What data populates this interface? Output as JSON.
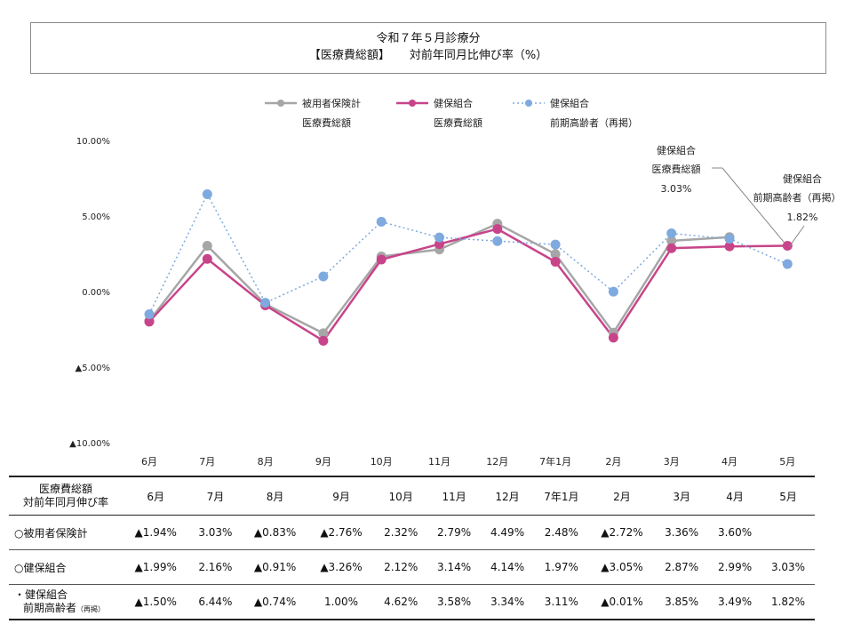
{
  "title": {
    "line1": "令和７年５月診療分",
    "line2a": "【医療費総額】",
    "line2b": "対前年同月比伸び率（%）"
  },
  "legend": [
    {
      "line1": "被用者保険計",
      "line2": "医療費総額"
    },
    {
      "line1": "健保組合",
      "line2": "医療費総額"
    },
    {
      "line1": "健保組合",
      "line2": "前期高齢者（再掲）"
    }
  ],
  "annotations": [
    {
      "lines": [
        "健保組合",
        "医療費総額",
        "3.03%"
      ]
    },
    {
      "lines": [
        "健保組合",
        "前期高齢者（再掲）",
        "1.82%"
      ]
    }
  ],
  "colors": {
    "series1": "#a6a6a6",
    "series2": "#c8448a",
    "series3": "#7eaadf"
  },
  "chart_data": {
    "type": "line",
    "categories": [
      "6月",
      "7月",
      "8月",
      "9月",
      "10月",
      "11月",
      "12月",
      "7年1月",
      "2月",
      "3月",
      "4月",
      "5月"
    ],
    "ylim": [
      -10,
      10
    ],
    "yticks": [
      "10.00%",
      "5.00%",
      "0.00%",
      "▲5.00%",
      "▲10.00%"
    ],
    "ytick_values": [
      10,
      5,
      0,
      -5,
      -10
    ],
    "series": [
      {
        "name": "被用者保険計 医療費総額",
        "values": [
          -1.94,
          3.03,
          -0.83,
          -2.76,
          2.32,
          2.79,
          4.49,
          2.48,
          -2.72,
          3.36,
          3.6,
          null
        ]
      },
      {
        "name": "健保組合 医療費総額",
        "values": [
          -1.99,
          2.16,
          -0.91,
          -3.26,
          2.12,
          3.14,
          4.14,
          1.97,
          -3.05,
          2.87,
          2.99,
          3.03
        ]
      },
      {
        "name": "健保組合 前期高齢者（再掲）",
        "values": [
          -1.5,
          6.44,
          -0.74,
          1.0,
          4.62,
          3.58,
          3.34,
          3.11,
          -0.01,
          3.85,
          3.49,
          1.82
        ]
      }
    ]
  },
  "table": {
    "header_label_line1": "医療費総額",
    "header_label_line2": "対前年同月伸び率",
    "months": [
      "6月",
      "7月",
      "8月",
      "9月",
      "10月",
      "11月",
      "12月",
      "7年1月",
      "2月",
      "3月",
      "4月",
      "5月"
    ],
    "rows": [
      {
        "label": "○被用者保険計",
        "label_small": "",
        "values": [
          "▲1.94%",
          "3.03%",
          "▲0.83%",
          "▲2.76%",
          "2.32%",
          "2.79%",
          "4.49%",
          "2.48%",
          "▲2.72%",
          "3.36%",
          "3.60%",
          ""
        ]
      },
      {
        "label": "○健保組合",
        "label_small": "",
        "values": [
          "▲1.99%",
          "2.16%",
          "▲0.91%",
          "▲3.26%",
          "2.12%",
          "3.14%",
          "4.14%",
          "1.97%",
          "▲3.05%",
          "2.87%",
          "2.99%",
          "3.03%"
        ]
      },
      {
        "label": "・健保組合",
        "label2": "前期高齢者",
        "label_small": "（再掲）",
        "values": [
          "▲1.50%",
          "6.44%",
          "▲0.74%",
          "1.00%",
          "4.62%",
          "3.58%",
          "3.34%",
          "3.11%",
          "▲0.01%",
          "3.85%",
          "3.49%",
          "1.82%"
        ]
      }
    ]
  }
}
